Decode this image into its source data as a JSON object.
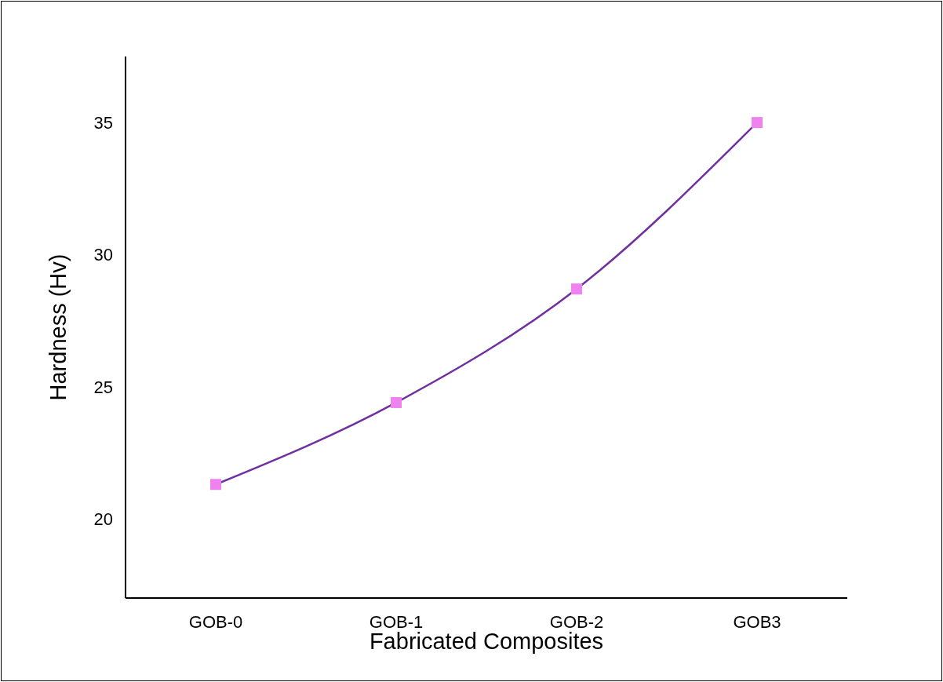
{
  "chart_data": {
    "type": "line",
    "xlabel": "Fabricated Composites",
    "ylabel": "Hardness (Hv)",
    "categories": [
      "GOB-0",
      "GOB-1",
      "GOB-2",
      "GOB3"
    ],
    "series": [
      {
        "color": "#7030a0",
        "colors": [
          "#ee82ee",
          "#ee82ee",
          "#ee82ee",
          "#ee82ee"
        ],
        "values": [
          21.3,
          24.4,
          28.7,
          35.0
        ]
      }
    ],
    "ylim": [
      17,
      37.5
    ],
    "yticks": [
      20,
      25,
      30,
      35
    ],
    "grid": false,
    "legend": false,
    "marker": "square",
    "line_style": "solid"
  }
}
